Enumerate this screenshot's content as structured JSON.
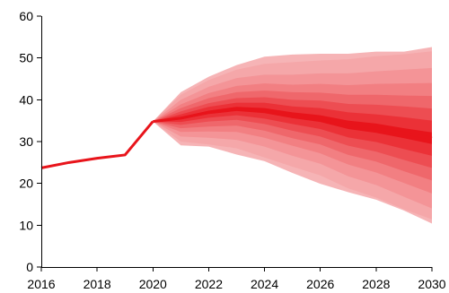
{
  "chart_data": {
    "type": "area",
    "title": "",
    "xlabel": "",
    "ylabel": "",
    "xlim": [
      2016,
      2030
    ],
    "ylim": [
      0,
      60
    ],
    "x_ticks": [
      2016,
      2018,
      2020,
      2022,
      2024,
      2026,
      2028,
      2030
    ],
    "y_ticks": [
      0,
      10,
      20,
      30,
      40,
      50,
      60
    ],
    "grid": false,
    "legend": "none",
    "colors": {
      "central_line": "#e8141b",
      "fan_outer": "#f9d0d1",
      "fan_inner": "#e8141b"
    },
    "history": {
      "x": [
        2016,
        2017,
        2018,
        2019,
        2020
      ],
      "y": [
        23.7,
        25.0,
        26.0,
        26.8,
        34.8
      ]
    },
    "fan": {
      "x": [
        2020,
        2021,
        2022,
        2023,
        2024,
        2025,
        2026,
        2027,
        2028,
        2029,
        2030
      ],
      "median": [
        34.8,
        35.6,
        37.0,
        37.8,
        37.4,
        36.3,
        35.5,
        34.0,
        33.2,
        32.0,
        30.8
      ],
      "upper": [
        [
          34.8,
          35.9,
          37.4,
          38.3,
          38.0,
          37.0,
          36.3,
          35.0,
          34.3,
          33.2,
          32.2
        ],
        [
          34.8,
          36.5,
          38.3,
          39.3,
          39.3,
          38.4,
          38.0,
          37.0,
          36.5,
          35.8,
          35.0
        ],
        [
          34.8,
          37.2,
          39.2,
          40.4,
          40.6,
          40.0,
          39.8,
          39.0,
          38.8,
          38.4,
          37.9
        ],
        [
          34.8,
          38.0,
          40.4,
          41.8,
          42.2,
          41.8,
          41.7,
          41.2,
          41.2,
          41.0,
          40.9
        ],
        [
          34.8,
          38.9,
          41.6,
          43.3,
          43.9,
          43.6,
          43.8,
          43.5,
          43.8,
          43.9,
          44.0
        ],
        [
          34.8,
          40.0,
          43.1,
          45.2,
          46.0,
          46.0,
          46.3,
          46.3,
          46.8,
          47.2,
          47.6
        ],
        [
          34.8,
          41.2,
          44.7,
          47.2,
          48.6,
          49.0,
          49.4,
          49.7,
          50.4,
          50.9,
          51.6
        ],
        [
          34.8,
          41.8,
          45.5,
          48.3,
          50.3,
          50.8,
          51.0,
          51.0,
          51.5,
          51.5,
          52.6
        ]
      ],
      "lower": [
        [
          34.8,
          35.3,
          36.6,
          37.3,
          36.8,
          35.6,
          34.7,
          33.0,
          32.1,
          30.8,
          29.4
        ],
        [
          34.8,
          34.7,
          35.7,
          36.3,
          35.5,
          34.2,
          33.0,
          31.0,
          29.9,
          28.2,
          26.6
        ],
        [
          34.8,
          34.0,
          34.8,
          35.2,
          34.2,
          32.6,
          31.2,
          29.0,
          27.6,
          25.6,
          23.7
        ],
        [
          34.8,
          33.2,
          33.6,
          33.8,
          32.6,
          30.8,
          29.3,
          26.8,
          25.2,
          22.9,
          20.7
        ],
        [
          34.8,
          32.3,
          32.4,
          32.3,
          30.9,
          29.0,
          27.2,
          24.5,
          22.6,
          20.1,
          17.6
        ],
        [
          34.8,
          31.2,
          30.9,
          30.4,
          28.8,
          26.6,
          24.7,
          21.7,
          19.6,
          16.8,
          14.0
        ],
        [
          34.8,
          30.0,
          29.3,
          28.4,
          26.2,
          24.0,
          21.9,
          18.8,
          16.6,
          13.8,
          11.4
        ],
        [
          34.8,
          29.1,
          28.8,
          26.9,
          25.3,
          22.5,
          19.9,
          17.9,
          16.1,
          13.5,
          10.4
        ]
      ]
    }
  }
}
